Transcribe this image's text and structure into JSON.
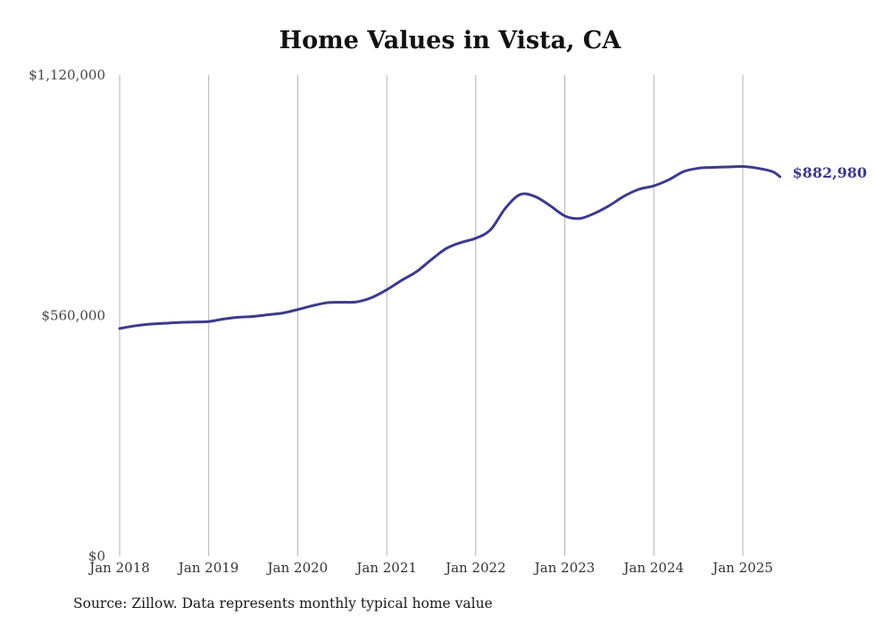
{
  "chart_data": {
    "type": "line",
    "title": "Home Values in Vista, CA",
    "xlabel": "",
    "ylabel": "",
    "ylim": [
      0,
      1120000
    ],
    "y_ticks": [
      {
        "value": 0,
        "label": "$0"
      },
      {
        "value": 560000,
        "label": "$560,000"
      },
      {
        "value": 1120000,
        "label": "$1,120,000"
      }
    ],
    "x_ticks": [
      {
        "value": "2018-01",
        "label": "Jan 2018"
      },
      {
        "value": "2019-01",
        "label": "Jan 2019"
      },
      {
        "value": "2020-01",
        "label": "Jan 2020"
      },
      {
        "value": "2021-01",
        "label": "Jan 2021"
      },
      {
        "value": "2022-01",
        "label": "Jan 2022"
      },
      {
        "value": "2023-01",
        "label": "Jan 2023"
      },
      {
        "value": "2024-01",
        "label": "Jan 2024"
      },
      {
        "value": "2025-01",
        "label": "Jan 2025"
      }
    ],
    "grid": "vertical",
    "line_color": "#3d3a8c",
    "series": [
      {
        "x": [
          "2018-01",
          "2018-03",
          "2018-05",
          "2018-07",
          "2018-09",
          "2018-11",
          "2019-01",
          "2019-03",
          "2019-05",
          "2019-07",
          "2019-09",
          "2019-11",
          "2020-01",
          "2020-03",
          "2020-05",
          "2020-07",
          "2020-09",
          "2020-11",
          "2021-01",
          "2021-03",
          "2021-05",
          "2021-07",
          "2021-09",
          "2021-11",
          "2022-01",
          "2022-03",
          "2022-05",
          "2022-07",
          "2022-09",
          "2022-11",
          "2023-01",
          "2023-03",
          "2023-05",
          "2023-07",
          "2023-09",
          "2023-11",
          "2024-01",
          "2024-03",
          "2024-05",
          "2024-07",
          "2024-09",
          "2024-11",
          "2025-01",
          "2025-03",
          "2025-05",
          "2025-06"
        ],
        "y": [
          530000,
          536000,
          540000,
          542000,
          544000,
          545000,
          546000,
          552000,
          556000,
          558000,
          562000,
          566000,
          574000,
          583000,
          590000,
          591000,
          592000,
          602000,
          620000,
          642000,
          662000,
          690000,
          716000,
          730000,
          740000,
          760000,
          810000,
          842000,
          837000,
          816000,
          792000,
          786000,
          798000,
          816000,
          838000,
          854000,
          862000,
          876000,
          895000,
          903000,
          905000,
          906000,
          907000,
          903000,
          895000,
          883000
        ]
      }
    ],
    "end_label": "$882,980",
    "source": "Source: Zillow. Data represents monthly typical home value"
  }
}
